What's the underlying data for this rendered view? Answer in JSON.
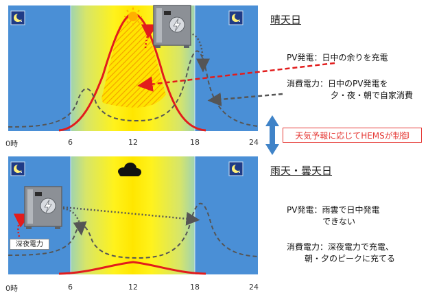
{
  "sunny": {
    "heading": "晴天日",
    "pv_text_1": "PV発電：日中の余りを充電",
    "use_text_1": "消費電力：日中のPV発電を",
    "use_text_2": "夕・夜・朝で自家消費"
  },
  "rainy": {
    "heading": "雨天・曇天日",
    "pv_text_1": "PV発電：雨雲で日中発電",
    "pv_text_2": "できない",
    "use_text_1": "消費電力：深夜電力で充電、",
    "use_text_2": "朝・夕のピークに充てる",
    "night_label": "深夜電力"
  },
  "hems_label": "天気予報に応じてHEMSが制御",
  "axis": {
    "ticks": [
      "0時",
      "6",
      "12",
      "18",
      "24"
    ]
  },
  "colors": {
    "night_blue": "#4a8fd6",
    "pv_red": "#e21c1c",
    "consumption_gray": "#555555",
    "control_arrow": "#3f83c8"
  },
  "icons": [
    "moon-icon",
    "sun-icon",
    "cloud-icon",
    "battery-icon",
    "lightning-icon",
    "up-down-arrow-icon"
  ]
}
